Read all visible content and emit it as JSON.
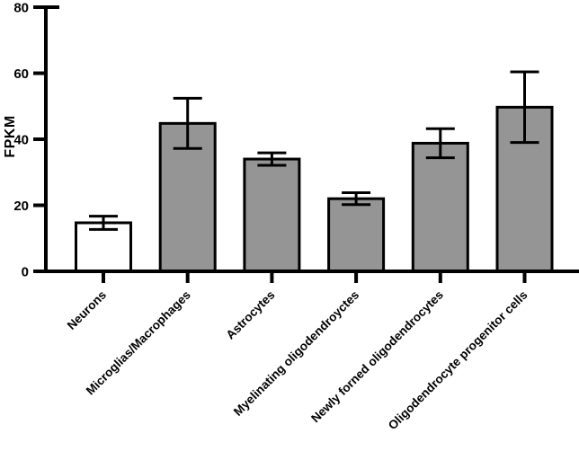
{
  "figure": {
    "background": "#ffffff",
    "axis_color": "#000000"
  },
  "chart_data": {
    "type": "bar",
    "title": "",
    "xlabel": "",
    "ylabel": "FPKM",
    "categories": [
      "Neurons",
      "Microglias/Macrophages",
      "Astrocytes",
      "Myelinating oligodendroyctes",
      "Newly forned oligodendrocytes",
      "Oligodendrocyte progenitor cells"
    ],
    "values": [
      14.7,
      44.8,
      34.0,
      22.0,
      38.8,
      49.7
    ],
    "errors": [
      2.0,
      7.6,
      1.9,
      1.8,
      4.4,
      10.7
    ],
    "error_bars": "symmetric, caps above and below",
    "bar_fill_colors": [
      "#ffffff",
      "#959595",
      "#959595",
      "#959595",
      "#959595",
      "#959595"
    ],
    "bar_edge_color": "#000000",
    "ylim": [
      0,
      80
    ],
    "yticks": [
      0,
      20,
      40,
      60,
      80
    ],
    "grid": false,
    "legend": null
  }
}
